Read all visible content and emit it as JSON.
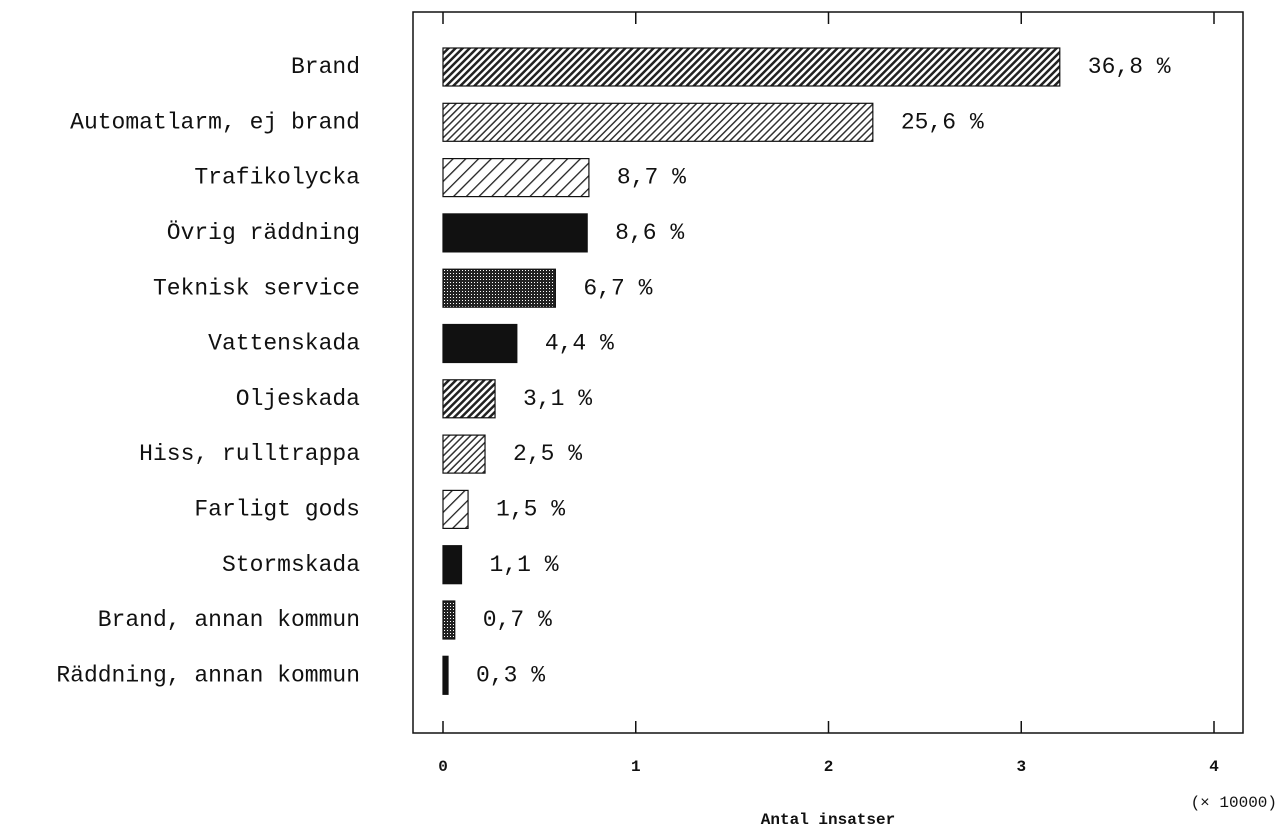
{
  "chart_data": {
    "type": "hbar",
    "categories": [
      "Brand",
      "Automatlarm, ej brand",
      "Trafikolycka",
      "Övrig räddning",
      "Teknisk service",
      "Vattenskada",
      "Oljeskada",
      "Hiss, rulltrappa",
      "Farligt gods",
      "Stormskada",
      "Brand, annan kommun",
      "Räddning, annan kommun"
    ],
    "values": [
      3.2,
      2.23,
      0.757,
      0.748,
      0.583,
      0.383,
      0.27,
      0.218,
      0.13,
      0.096,
      0.061,
      0.026
    ],
    "percent_labels": [
      "36,8 %",
      "25,6 %",
      "8,7 %",
      "8,6 %",
      "6,7 %",
      "4,4 %",
      "3,1 %",
      "2,5 %",
      "1,5 %",
      "1,1 %",
      "0,7 %",
      "0,3 %"
    ],
    "xlim": [
      0,
      4
    ],
    "xticks": [
      0,
      1,
      2,
      3,
      4
    ],
    "xlabel": "Antal insatser",
    "x_multiplier": "(× 10000)"
  }
}
